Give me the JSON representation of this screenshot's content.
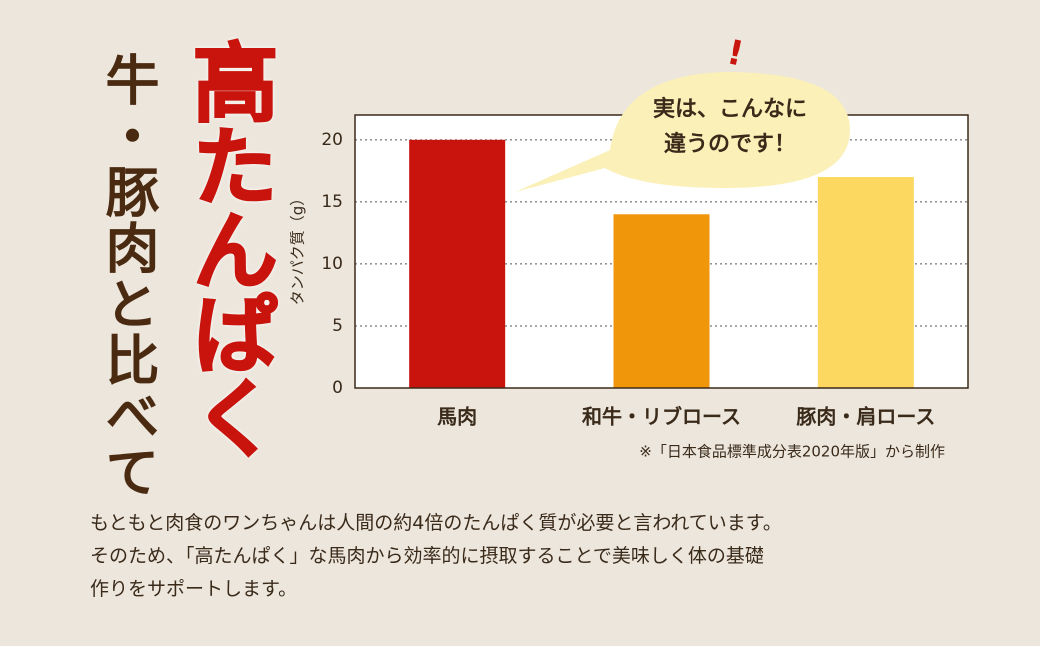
{
  "heading": {
    "sub": "牛・豚肉と比べて",
    "main": "高たんぱく"
  },
  "bubble": {
    "mark": "!",
    "lines": [
      "実は、こんなに",
      "違うのです！"
    ]
  },
  "chart_data": {
    "type": "bar",
    "ylabel": "タンパク質（g）",
    "categories": [
      "馬肉",
      "和牛・リブロース",
      "豚肉・肩ロース"
    ],
    "values": [
      20,
      14,
      17
    ],
    "colors": [
      "#c8140c",
      "#f0960a",
      "#fcd860"
    ],
    "ylim": [
      0,
      22
    ],
    "yticks": [
      0,
      5,
      10,
      15,
      20
    ],
    "grid": true,
    "note": "※「日本食品標準成分表2020年版」から制作"
  },
  "body": [
    "もともと肉食のワンちゃんは人間の約4倍のたんぱく質が必要と言われています。",
    "そのため、「高たんぱく」な馬肉から効率的に摂取することで美味しく体の基礎",
    "作りをサポートします。"
  ]
}
